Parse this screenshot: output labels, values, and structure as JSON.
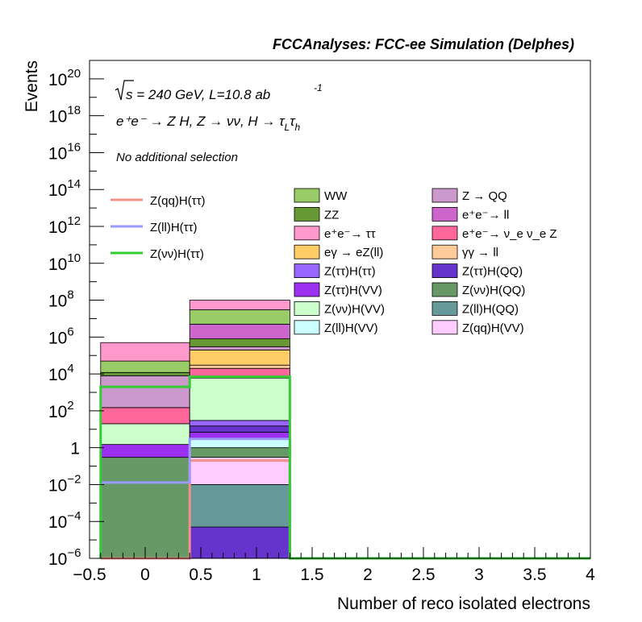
{
  "chart_data": {
    "type": "bar",
    "stacked": true,
    "title": "FCCAnalyses: FCC-ee Simulation (Delphes)",
    "xlabel": "Number of reco isolated electrons",
    "ylabel": "Events",
    "yscale": "log",
    "xlim": [
      -0.5,
      4
    ],
    "ylim": [
      1e-06,
      1e+21
    ],
    "grid": false,
    "bin_edges": [
      -0.4,
      0.4,
      1.3
    ],
    "annotations": {
      "line1_pre": "s = 240 GeV, L=10.8 ab",
      "line1_exp": "-1",
      "line2": "e⁺e⁻ → Z H, Z → νν, H → τ",
      "line2_sub1": "L",
      "line2_mid": "τ",
      "line2_sub2": "h",
      "line3": "No additional selection"
    },
    "x_ticks": [
      "−0.5",
      "0",
      "0.5",
      "1",
      "1.5",
      "2",
      "2.5",
      "3",
      "3.5",
      "4"
    ],
    "y_ticks": [
      {
        "base": "10",
        "exp": "−6"
      },
      {
        "base": "10",
        "exp": "−4"
      },
      {
        "base": "10",
        "exp": "−2"
      },
      {
        "base": "1",
        "exp": ""
      },
      {
        "base": "10",
        "exp": "2"
      },
      {
        "base": "10",
        "exp": "4"
      },
      {
        "base": "10",
        "exp": "6"
      },
      {
        "base": "10",
        "exp": "8"
      },
      {
        "base": "10",
        "exp": "10"
      },
      {
        "base": "10",
        "exp": "12"
      },
      {
        "base": "10",
        "exp": "14"
      },
      {
        "base": "10",
        "exp": "16"
      },
      {
        "base": "10",
        "exp": "18"
      },
      {
        "base": "10",
        "exp": "20"
      }
    ],
    "stack_bins": [
      [
        {
          "name": "Z(νν)H(QQ)",
          "bottom": 1e-06,
          "top": 0.3,
          "color": "#669966"
        },
        {
          "name": "Z(ττ)H(VV)",
          "bottom": 0.3,
          "top": 1.5,
          "color": "#9b30f0"
        },
        {
          "name": "Z(νν)H(VV)",
          "bottom": 1.5,
          "top": 20,
          "color": "#ccffcc"
        },
        {
          "name": "e⁺e⁻→ ν_e ν_e Z",
          "bottom": 20,
          "top": 150,
          "color": "#ff6699"
        },
        {
          "name": "Z → QQ",
          "bottom": 150,
          "top": 8000,
          "color": "#cc99cc"
        },
        {
          "name": "ZZ",
          "bottom": 8000,
          "top": 12000,
          "color": "#669933"
        },
        {
          "name": "WW",
          "bottom": 12000,
          "top": 50000,
          "color": "#99cc66"
        },
        {
          "name": "e⁺e⁻→ ττ",
          "bottom": 50000,
          "top": 500000,
          "color": "#ff99cc"
        }
      ],
      [
        {
          "name": "Z(ττ)H(QQ)",
          "bottom": 1e-06,
          "top": 5e-05,
          "color": "#6633cc"
        },
        {
          "name": "Z(ll)H(QQ)",
          "bottom": 5e-05,
          "top": 0.01,
          "color": "#669999"
        },
        {
          "name": "Z(qq)H(VV)",
          "bottom": 0.01,
          "top": 0.3,
          "color": "#ffccff"
        },
        {
          "name": "Z(νν)H(QQ)",
          "bottom": 0.3,
          "top": 1,
          "color": "#669966"
        },
        {
          "name": "Z(ll)H(VV)",
          "bottom": 1,
          "top": 3,
          "color": "#ccffff"
        },
        {
          "name": "Z(ττ)H(VV)",
          "bottom": 3,
          "top": 7,
          "color": "#9b30f0"
        },
        {
          "name": "Z(ττ)H(QQ)",
          "bottom": 7,
          "top": 15,
          "color": "#6633cc"
        },
        {
          "name": "Z(ττ)H(ττ)",
          "bottom": 15,
          "top": 30,
          "color": "#9966ff"
        },
        {
          "name": "Z(νν)H(VV)",
          "bottom": 30,
          "top": 6000,
          "color": "#ccffcc"
        },
        {
          "name": "e⁺e⁻→ ν_e ν_e Z",
          "bottom": 6000,
          "top": 20000,
          "color": "#ff6699"
        },
        {
          "name": "γγ → ll",
          "bottom": 20000,
          "top": 30000,
          "color": "#ffcc99"
        },
        {
          "name": "eγ → eZ(ll)",
          "bottom": 30000,
          "top": 200000,
          "color": "#ffcc66"
        },
        {
          "name": "Z → QQ",
          "bottom": 200000,
          "top": 300000,
          "color": "#cc99cc"
        },
        {
          "name": "ZZ",
          "bottom": 300000,
          "top": 800000,
          "color": "#669933"
        },
        {
          "name": "e⁺e⁻ → ll",
          "bottom": 800000,
          "top": 5000000,
          "color": "#cc66cc"
        },
        {
          "name": "WW",
          "bottom": 5000000,
          "top": 30000000.0,
          "color": "#99cc66"
        },
        {
          "name": "e⁺e⁻→ ττ",
          "bottom": 30000000.0,
          "top": 100000000.0,
          "color": "#ff99cc"
        }
      ]
    ],
    "signal_series": [
      {
        "name": "Z(qq)H(ττ)",
        "color": "#f4908a",
        "values": [
          1e-06,
          0.2
        ]
      },
      {
        "name": "Z(ll)H(ττ)",
        "color": "#9999ff",
        "values": [
          0.013,
          3
        ]
      },
      {
        "name": "Z(νν)H(ττ)",
        "color": "#33cc33",
        "values": [
          2000,
          7000
        ]
      }
    ],
    "legend_signal": [
      {
        "label": "Z(qq)H(ττ)",
        "color": "#f4908a"
      },
      {
        "label": "Z(ll)H(ττ)",
        "color": "#9999ff"
      },
      {
        "label": "Z(νν)H(ττ)",
        "color": "#33cc33"
      }
    ],
    "legend_col1": [
      {
        "label": "WW",
        "color": "#99cc66"
      },
      {
        "label": "ZZ",
        "color": "#669933"
      },
      {
        "label": "e⁺e⁻→ ττ",
        "color": "#ff99cc"
      },
      {
        "label": "eγ → eZ(ll)",
        "color": "#ffcc66"
      },
      {
        "label": "Z(ττ)H(ττ)",
        "color": "#9966ff"
      },
      {
        "label": "Z(ττ)H(VV)",
        "color": "#9b30f0"
      },
      {
        "label": "Z(νν)H(VV)",
        "color": "#ccffcc"
      },
      {
        "label": "Z(ll)H(VV)",
        "color": "#ccffff"
      }
    ],
    "legend_col2": [
      {
        "label": "Z → QQ",
        "color": "#cc99cc"
      },
      {
        "label": "e⁺e⁻→ ll",
        "color": "#cc66cc"
      },
      {
        "label": "e⁺e⁻→ ν_e ν_e Z",
        "color": "#ff6699"
      },
      {
        "label": "γγ → ll",
        "color": "#ffcc99"
      },
      {
        "label": "Z(ττ)H(QQ)",
        "color": "#6633cc"
      },
      {
        "label": "Z(νν)H(QQ)",
        "color": "#669966"
      },
      {
        "label": "Z(ll)H(QQ)",
        "color": "#669999"
      },
      {
        "label": "Z(qq)H(VV)",
        "color": "#ffccff"
      }
    ]
  }
}
